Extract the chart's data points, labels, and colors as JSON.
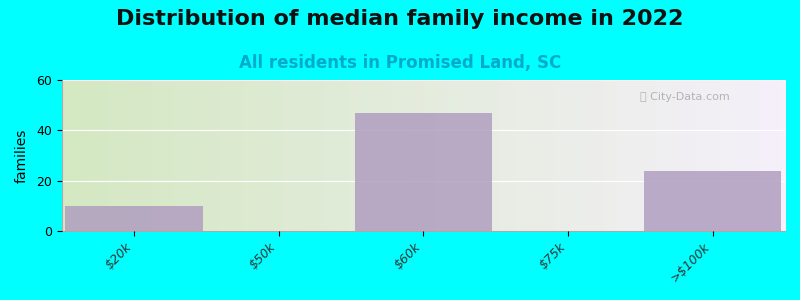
{
  "title": "Distribution of median family income in 2022",
  "subtitle": "All residents in Promised Land, SC",
  "categories": [
    "$20k",
    "$50k",
    "$60k",
    "$75k",
    ">$100k"
  ],
  "values": [
    10,
    0,
    47,
    0,
    24
  ],
  "bar_color": "#b09ec0",
  "bar_alpha": 0.85,
  "ylabel": "families",
  "ylim": [
    0,
    60
  ],
  "yticks": [
    0,
    20,
    40,
    60
  ],
  "background_color": "#00ffff",
  "plot_bg_left": "#d4e8c2",
  "plot_bg_right": "#f5f0fa",
  "title_fontsize": 16,
  "subtitle_fontsize": 12,
  "subtitle_color": "#00aacc",
  "watermark": "ⓘ City-Data.com"
}
